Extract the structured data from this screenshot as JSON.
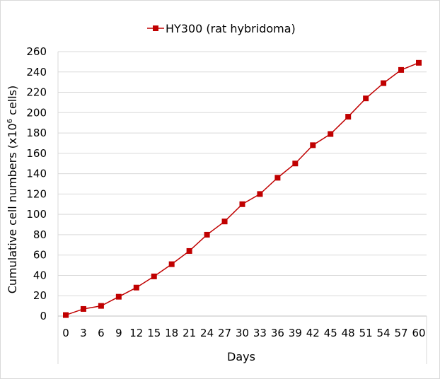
{
  "chart_data": {
    "type": "line",
    "legend_position": "top-center",
    "grid": true,
    "xlabel": "Days",
    "ylabel": "Cumulative cell numbers (x10",
    "ylabel_superscript": "6",
    "ylabel_suffix": " cells)",
    "ylim": [
      0,
      260
    ],
    "y_ticks": [
      "0",
      "20",
      "40",
      "60",
      "80",
      "100",
      "120",
      "140",
      "160",
      "180",
      "200",
      "220",
      "240",
      "260"
    ],
    "x_ticks": [
      "0",
      "3",
      "6",
      "9",
      "12",
      "15",
      "18",
      "21",
      "24",
      "27",
      "30",
      "33",
      "36",
      "39",
      "42",
      "45",
      "48",
      "51",
      "54",
      "57",
      "60"
    ],
    "series": [
      {
        "name": "HY300 (rat hybridoma)",
        "color": "#C00000",
        "marker": "square",
        "x": [
          0,
          3,
          6,
          9,
          12,
          15,
          18,
          21,
          24,
          27,
          30,
          33,
          36,
          39,
          42,
          45,
          48,
          51,
          54,
          57,
          60
        ],
        "values": [
          1,
          7,
          10,
          19,
          28,
          39,
          51,
          64,
          80,
          93,
          110,
          120,
          136,
          150,
          168,
          179,
          196,
          214,
          229,
          242,
          249
        ]
      }
    ]
  }
}
